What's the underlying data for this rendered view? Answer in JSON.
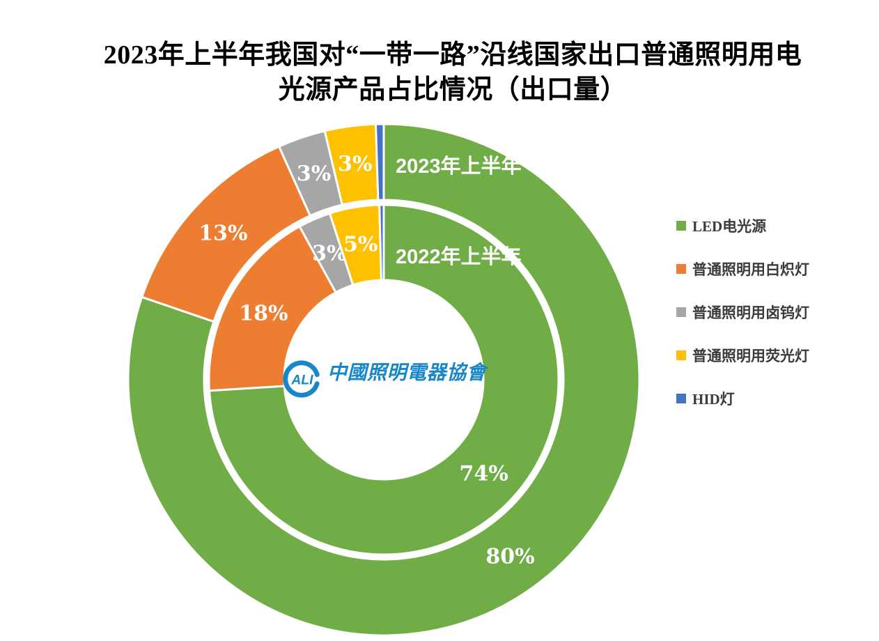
{
  "title": {
    "line1": "2023年上半年我国对“一带一路”沿线国家出口普通照明用电",
    "line2": "光源产品占比情况（出口量）"
  },
  "chart_data": {
    "type": "pie",
    "subtype": "nested-donut",
    "title": "2023年上半年我国对“一带一路”沿线国家出口普通照明用电光源产品占比情况（出口量）",
    "categories": [
      "LED电光源",
      "普通照明用白炽灯",
      "普通照明用卤钨灯",
      "普通照明用荧光灯",
      "HID灯"
    ],
    "colors": [
      "#70AD47",
      "#ED7D31",
      "#A6A6A6",
      "#FFC000",
      "#4472C4"
    ],
    "series": [
      {
        "name": "2023年上半年",
        "ring": "outer",
        "values": [
          80,
          13,
          3,
          3.2,
          0.5
        ],
        "labels": [
          "80%",
          "13%",
          "3%",
          "3%",
          ""
        ]
      },
      {
        "name": "2022年上半年",
        "ring": "inner",
        "values": [
          74,
          18,
          3,
          4.6,
          0.4
        ],
        "labels": [
          "74%",
          "18%",
          "3%",
          "5%",
          ""
        ]
      }
    ],
    "start_angle_deg": 0,
    "direction": "clockwise",
    "legend_position": "right",
    "slice_border_color": "#FFFFFF",
    "label_color": "#FFFFFF"
  },
  "legend": {
    "items": [
      {
        "label": "LED电光源",
        "color": "#70AD47"
      },
      {
        "label": "普通照明用白炽灯",
        "color": "#ED7D31"
      },
      {
        "label": "普通照明用卤钨灯",
        "color": "#A6A6A6"
      },
      {
        "label": "普通照明用荧光灯",
        "color": "#FFC000"
      },
      {
        "label": "HID灯",
        "color": "#4472C4"
      }
    ]
  },
  "logo": {
    "mark": "CALI",
    "name": "中國照明電器協會",
    "color": "#1787C8"
  }
}
